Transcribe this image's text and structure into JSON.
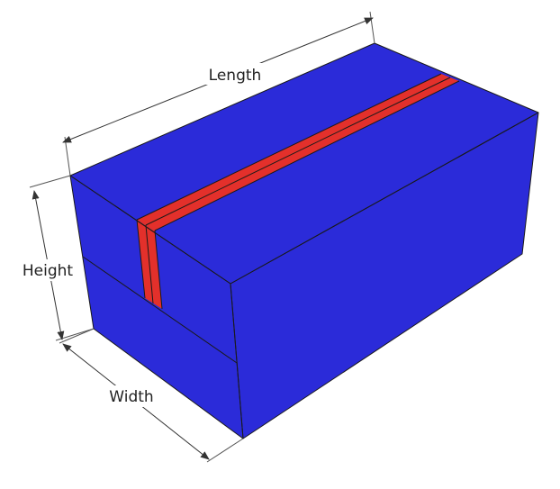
{
  "diagram": {
    "labels": {
      "length": "Length",
      "height": "Height",
      "width": "Width"
    },
    "colors": {
      "box_face": "#2b2bd9",
      "tape": "#e3302b",
      "edge": "#1a1a1a",
      "background": "#ffffff"
    }
  }
}
